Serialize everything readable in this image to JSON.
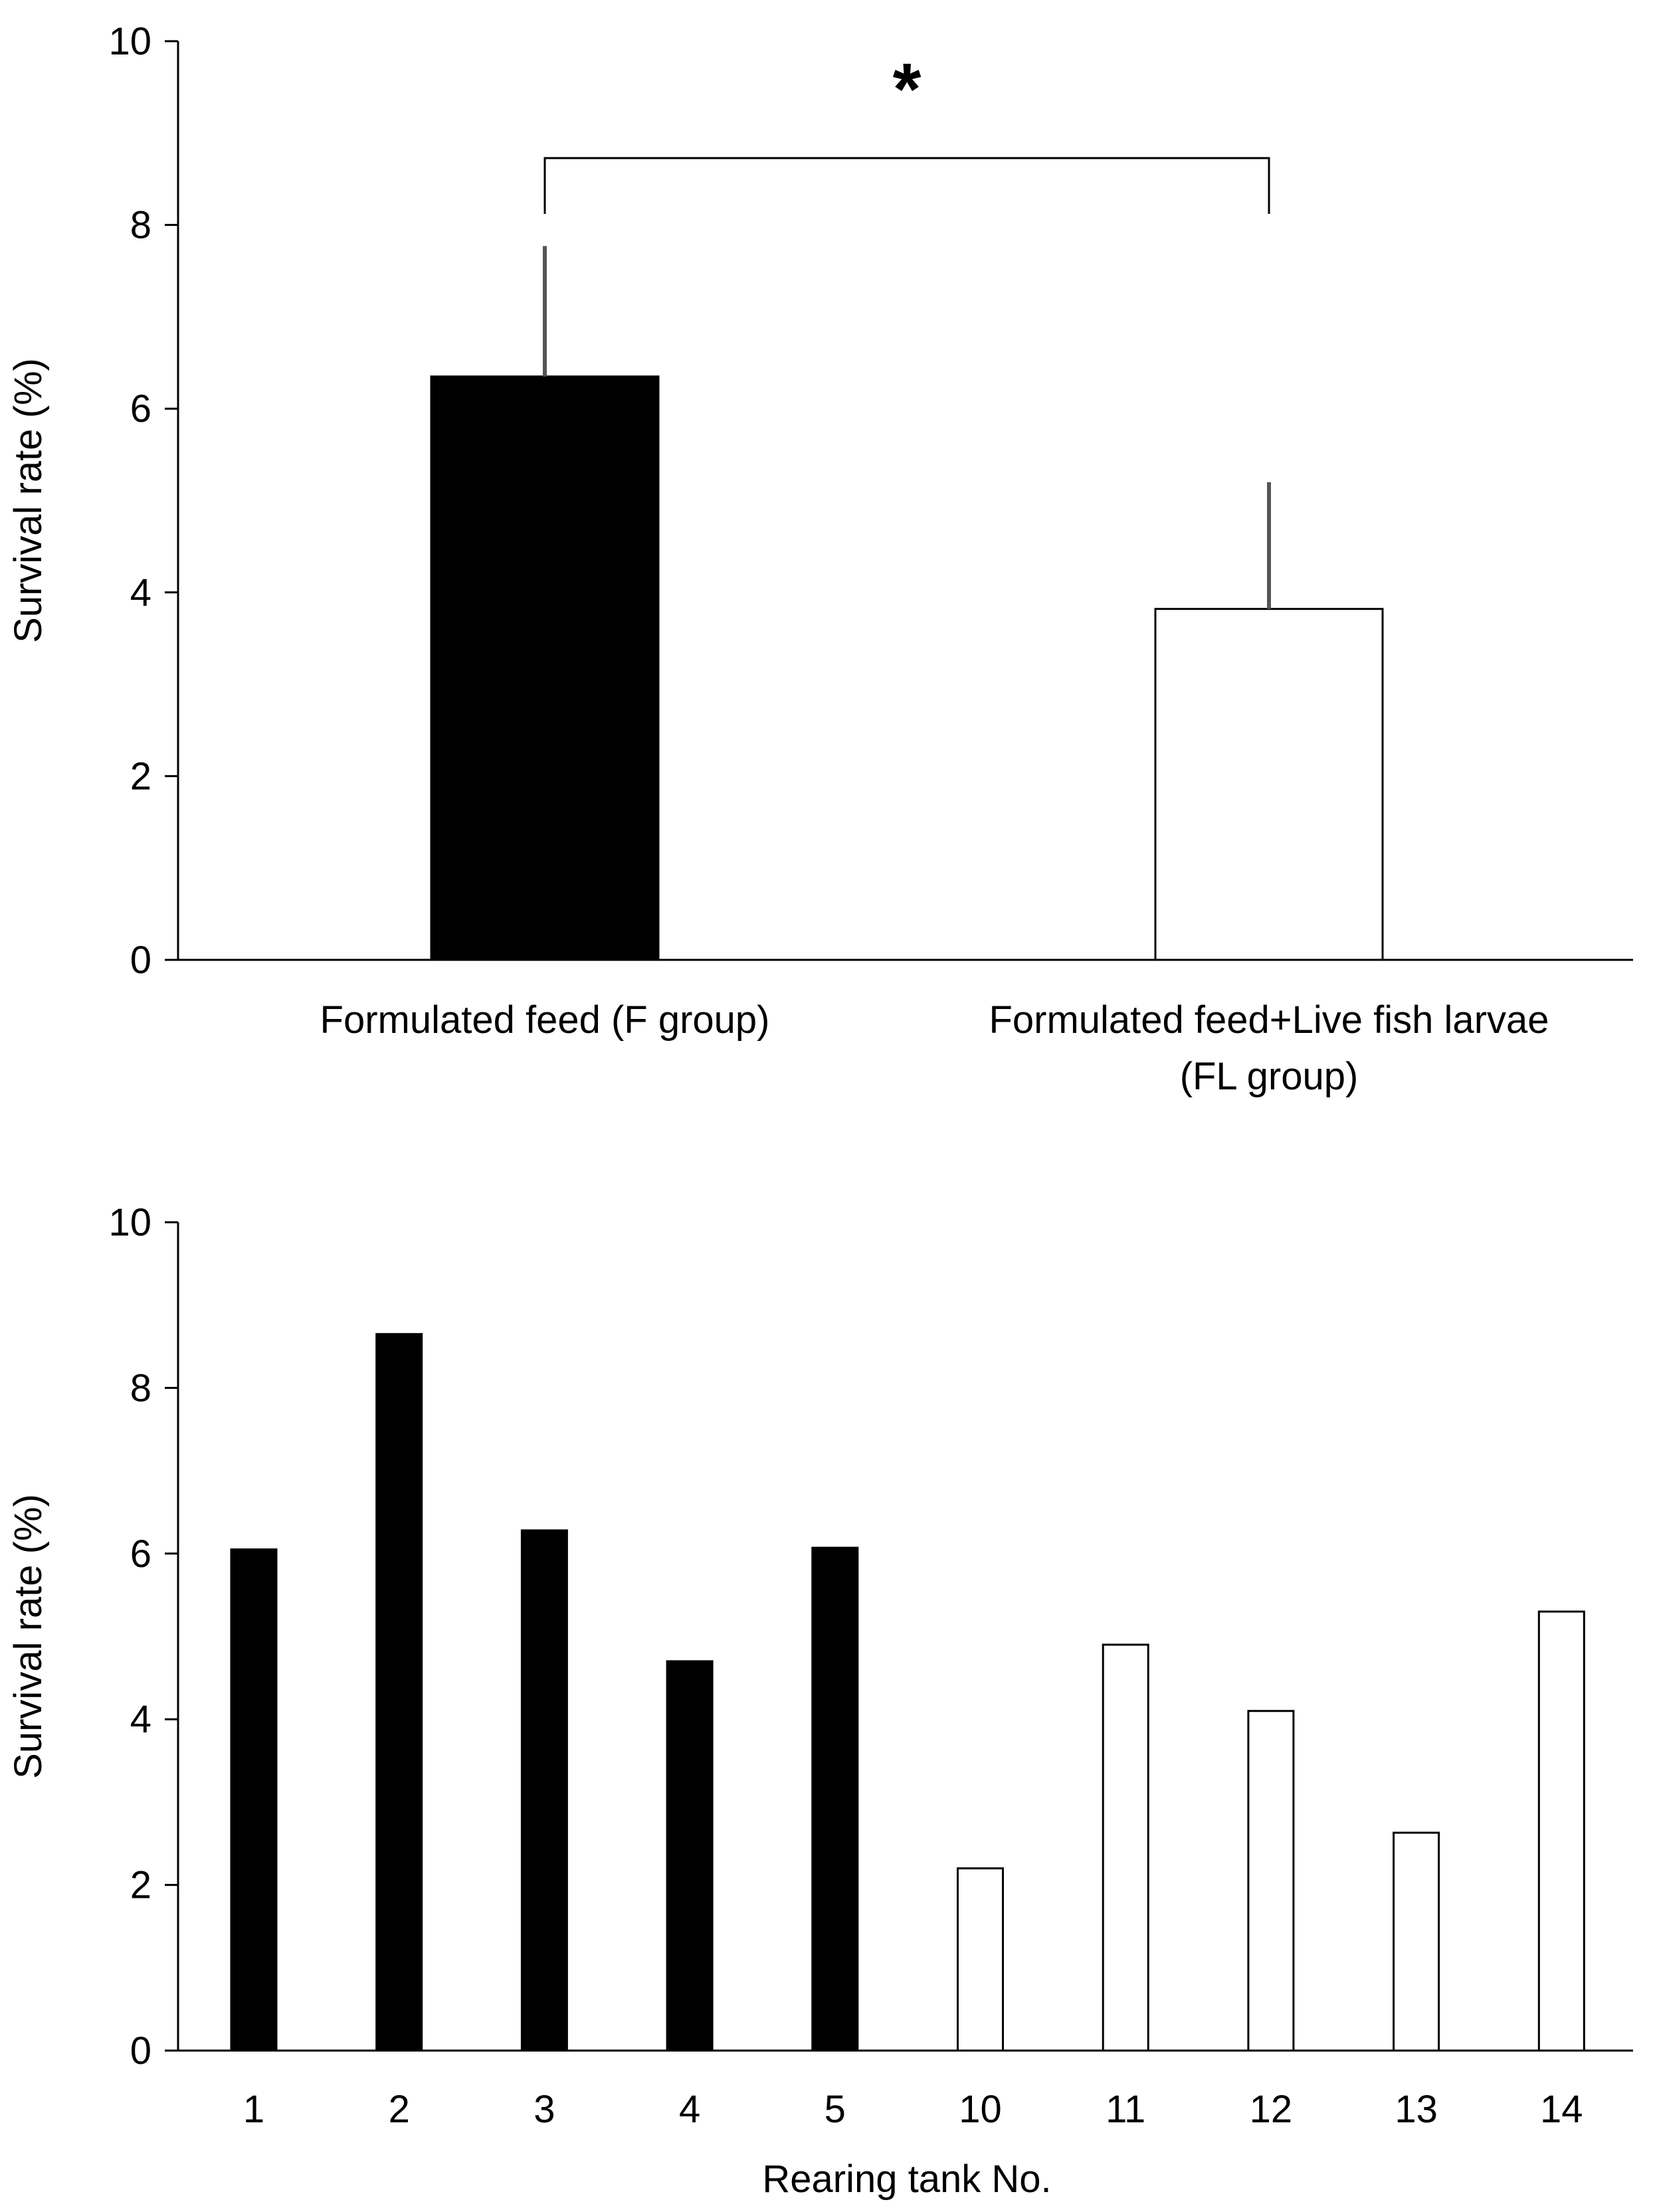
{
  "chart_data": [
    {
      "type": "bar",
      "categories": [
        "Formulated feed (F group)",
        "Formulated feed+Live fish larvae"
      ],
      "category_sublabels": [
        "",
        "(FL group)"
      ],
      "values": [
        6.35,
        3.82
      ],
      "error_bars": [
        1.42,
        1.38
      ],
      "bar_colors": [
        "#000000",
        "#ffffff"
      ],
      "ylabel": "Survival rate (%)",
      "xlabel": "",
      "ylim": [
        0,
        10
      ],
      "yticks": [
        0,
        2,
        4,
        6,
        8,
        10
      ],
      "annotation": "*",
      "grid": false
    },
    {
      "type": "bar",
      "categories": [
        "1",
        "2",
        "3",
        "4",
        "5",
        "10",
        "11",
        "12",
        "13",
        "14"
      ],
      "values": [
        6.05,
        8.65,
        6.28,
        4.7,
        6.07,
        2.2,
        4.9,
        4.1,
        2.63,
        5.3
      ],
      "bar_colors": [
        "#000000",
        "#000000",
        "#000000",
        "#000000",
        "#000000",
        "#ffffff",
        "#ffffff",
        "#ffffff",
        "#ffffff",
        "#ffffff"
      ],
      "ylabel": "Survival rate (%)",
      "xlabel": "Rearing tank No.",
      "ylim": [
        0,
        10
      ],
      "yticks": [
        0,
        2,
        4,
        6,
        8,
        10
      ],
      "grid": false
    }
  ]
}
